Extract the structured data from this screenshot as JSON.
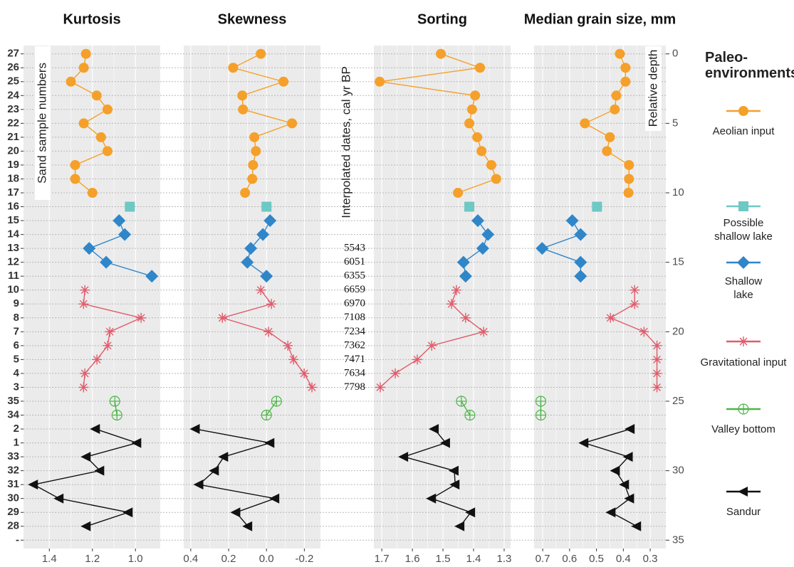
{
  "chart_data": {
    "type": "depth_profile",
    "y_label": "Sand sample numbers",
    "categories": [
      "27",
      "26",
      "25",
      "24",
      "23",
      "22",
      "21",
      "20",
      "19",
      "18",
      "17",
      "16",
      "15",
      "14",
      "13",
      "12",
      "11",
      "10",
      "9",
      "8",
      "7",
      "6",
      "5",
      "4",
      "3",
      "35",
      "34",
      "2",
      "1",
      "33",
      "32",
      "31",
      "30",
      "29",
      "28",
      "-"
    ],
    "ylim": [
      -0.6,
      35.6
    ],
    "y2_label": "Relative depth",
    "y2ticks": [
      0,
      5,
      10,
      15,
      20,
      25,
      30,
      35
    ],
    "dates_label": "Interpolated dates, cal yr BP",
    "dates": [
      null,
      null,
      null,
      null,
      null,
      null,
      null,
      null,
      null,
      null,
      null,
      null,
      null,
      null,
      5543,
      6051,
      6355,
      6659,
      6970,
      7108,
      7234,
      7362,
      7471,
      7634,
      7798,
      null,
      null,
      null,
      null,
      null,
      null,
      null,
      null,
      null,
      null,
      null
    ],
    "legend_title": "Paleo-environments",
    "panels": [
      {
        "title": "Kurtosis",
        "xlim": [
          1.52,
          0.885
        ],
        "xticks": [
          1.4,
          1.2,
          {
            "value": 1,
            "label": "1.0"
          }
        ]
      },
      {
        "title": "Skewness",
        "xlim": [
          0.437,
          -0.285
        ],
        "xticks": [
          0.4,
          0.2,
          {
            "value": 0,
            "label": "0.0"
          },
          {
            "value": -0.2,
            "label": "-0.2"
          }
        ]
      },
      {
        "title": "Sorting",
        "xlim": [
          1.726,
          1.279
        ],
        "xticks": [
          1.7,
          1.6,
          1.5,
          1.4,
          1.3
        ]
      },
      {
        "title": "Median grain size, mm",
        "xlim": [
          0.732,
          0.242
        ],
        "xticks": [
          0.7,
          0.6,
          0.5,
          0.4,
          0.3
        ]
      }
    ],
    "series": [
      {
        "name": "Aeolian input",
        "color": "#f5a02a",
        "marker": "circle",
        "y": [
          0,
          1,
          2,
          3,
          4,
          5,
          6,
          7,
          8,
          9,
          10
        ],
        "values": [
          [
            1.23,
            1.24,
            1.3,
            1.18,
            1.13,
            1.24,
            1.16,
            1.13,
            1.28,
            1.28,
            1.2
          ],
          [
            0.03,
            0.176,
            -0.09,
            0.128,
            0.124,
            -0.135,
            0.064,
            0.056,
            0.071,
            0.075,
            0.113
          ],
          [
            1.507,
            1.379,
            1.707,
            1.395,
            1.405,
            1.414,
            1.388,
            1.374,
            1.342,
            1.326,
            1.451
          ],
          [
            0.413,
            0.392,
            0.392,
            0.426,
            0.432,
            0.543,
            0.45,
            0.461,
            0.379,
            0.379,
            0.381
          ]
        ]
      },
      {
        "name": "Possible shallow lake",
        "color": "#6ec8c4",
        "marker": "square",
        "y": [
          11
        ],
        "values": [
          [
            1.026
          ],
          [
            0.0
          ],
          [
            1.414
          ],
          [
            0.498
          ]
        ]
      },
      {
        "name": "Shallow lake",
        "color": "#2f86c9",
        "marker": "diamond",
        "y": [
          12,
          13,
          14,
          15,
          16
        ],
        "values": [
          [
            1.076,
            1.05,
            1.215,
            1.136,
            0.924
          ],
          [
            -0.019,
            0.019,
            0.083,
            0.101,
            0.0
          ],
          [
            1.386,
            1.353,
            1.37,
            1.433,
            1.426
          ],
          [
            0.59,
            0.559,
            0.702,
            0.559,
            0.559
          ]
        ]
      },
      {
        "name": "Gravitational input",
        "color": "#e05c6c",
        "marker": "asterisk",
        "y": [
          17,
          18,
          19,
          20,
          21,
          22,
          23,
          24
        ],
        "values": [
          [
            1.235,
            1.241,
            0.974,
            1.119,
            1.129,
            1.179,
            1.235,
            1.241
          ],
          [
            0.03,
            -0.026,
            0.233,
            -0.011,
            -0.113,
            -0.143,
            -0.199,
            -0.24
          ],
          [
            1.456,
            1.472,
            1.426,
            1.367,
            1.537,
            1.584,
            1.656,
            1.705
          ],
          [
            0.358,
            0.358,
            0.448,
            0.323,
            0.275,
            0.275,
            0.275,
            0.275
          ]
        ]
      },
      {
        "name": "Valley bottom",
        "color": "#4fb548",
        "marker": "circleplus",
        "y": [
          25,
          26
        ],
        "values": [
          [
            1.096,
            1.086
          ],
          [
            -0.053,
            0.0
          ],
          [
            1.44,
            1.412
          ],
          [
            0.707,
            0.707
          ]
        ]
      },
      {
        "name": "Sandur",
        "color": "#111111",
        "marker": "triangle",
        "y": [
          27,
          28,
          29,
          30,
          31,
          32,
          33,
          34
        ],
        "values": [
          [
            1.185,
            0.993,
            1.228,
            1.165,
            1.473,
            1.354,
            1.033,
            1.228
          ],
          [
            0.375,
            -0.019,
            0.225,
            0.274,
            0.356,
            -0.045,
            0.161,
            0.098
          ],
          [
            1.528,
            1.491,
            1.628,
            1.463,
            1.46,
            1.537,
            1.409,
            1.444
          ],
          [
            0.374,
            0.546,
            0.381,
            0.429,
            0.395,
            0.376,
            0.445,
            0.35
          ]
        ]
      }
    ]
  }
}
